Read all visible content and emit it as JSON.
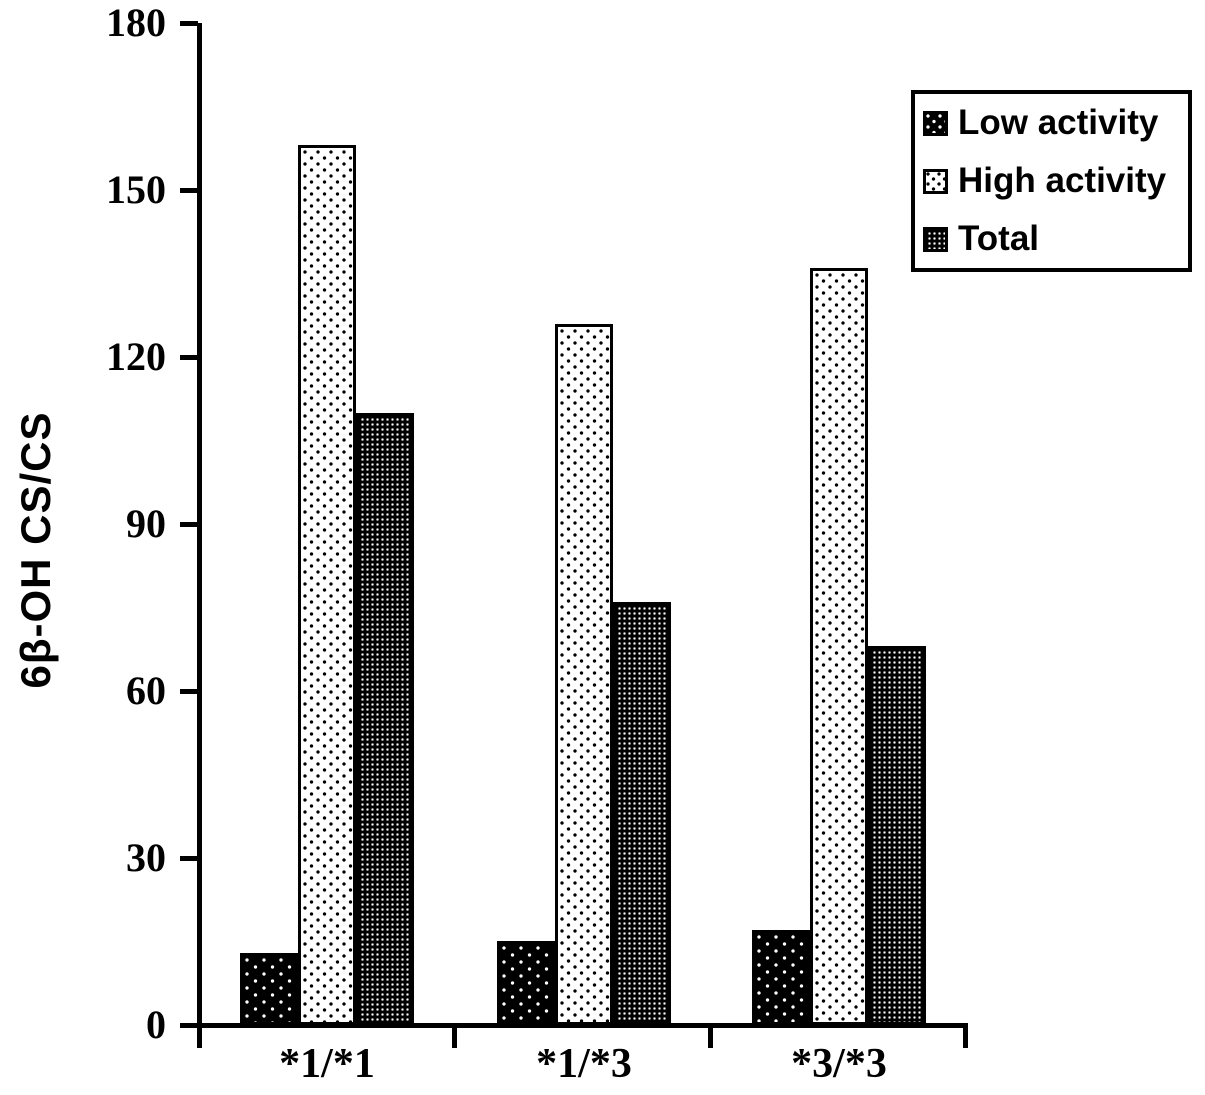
{
  "figure": {
    "background": "#ffffff",
    "axis_color": "#000000"
  },
  "legend": {
    "items": [
      {
        "label": "Low activity",
        "swatch": "black-with-white-dots"
      },
      {
        "label": "High activity",
        "swatch": "white-with-black-dots"
      },
      {
        "label": "Total",
        "swatch": "dense-white-dot-mesh"
      }
    ]
  },
  "chart_data": {
    "type": "bar",
    "categories": [
      "*1/*1",
      "*1/*3",
      "*3/*3"
    ],
    "series": [
      {
        "name": "Low activity",
        "pattern": "black-with-white-dots",
        "values": [
          13,
          15,
          17
        ]
      },
      {
        "name": "High activity",
        "pattern": "white-with-black-dots",
        "values": [
          158,
          126,
          136
        ]
      },
      {
        "name": "Total",
        "pattern": "dense-white-dot-mesh",
        "values": [
          110,
          76,
          68
        ]
      }
    ],
    "title": "",
    "xlabel": "",
    "ylabel": "6β-OH CS/CS",
    "ylim": [
      0,
      180
    ],
    "yticks": [
      0,
      30,
      60,
      90,
      120,
      150,
      180
    ],
    "grid": false,
    "legend_position": "top-right"
  }
}
